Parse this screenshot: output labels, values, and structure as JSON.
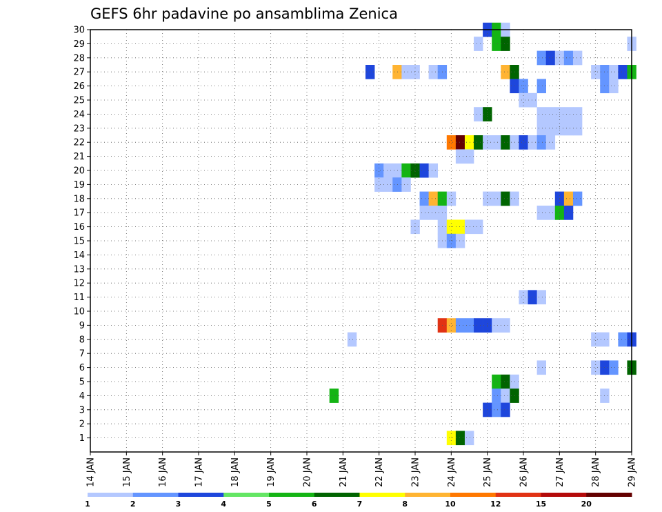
{
  "chart_data": {
    "type": "heatmap",
    "title": "GEFS 6hr padavine po ansamblima Zenica",
    "xlabel": "",
    "ylabel": "",
    "x_ticks": [
      "14 JAN",
      "15 JAN",
      "16 JAN",
      "17 JAN",
      "18 JAN",
      "19 JAN",
      "20 JAN",
      "21 JAN",
      "22 JAN",
      "23 JAN",
      "24 JAN",
      "25 JAN",
      "26 JAN",
      "27 JAN",
      "28 JAN",
      "29 JAN"
    ],
    "y_ticks": [
      "1",
      "2",
      "3",
      "4",
      "5",
      "6",
      "7",
      "8",
      "9",
      "10",
      "11",
      "12",
      "13",
      "14",
      "15",
      "16",
      "17",
      "18",
      "19",
      "20",
      "21",
      "22",
      "23",
      "24",
      "25",
      "26",
      "27",
      "28",
      "29",
      "30"
    ],
    "xlim_days": [
      14,
      29
    ],
    "ylim": [
      0,
      30
    ],
    "grid": true,
    "colorbar": {
      "levels": [
        "1",
        "2",
        "3",
        "4",
        "5",
        "6",
        "7",
        "8",
        "10",
        "12",
        "15",
        "20"
      ],
      "colors": [
        "#b4c8ff",
        "#6495ff",
        "#1e46dc",
        "#64e664",
        "#14b414",
        "#006400",
        "#ffff00",
        "#ffb432",
        "#ff7800",
        "#e13214",
        "#b40a0a",
        "#640000"
      ]
    },
    "cells": [
      {
        "y": 30,
        "x": "25 JAN 00Z",
        "v": 3
      },
      {
        "y": 30,
        "x": "25 JAN 06Z",
        "v": 5
      },
      {
        "y": 30,
        "x": "25 JAN 12Z",
        "v": 1
      },
      {
        "y": 29,
        "x": "24 JAN 18Z",
        "v": 1
      },
      {
        "y": 29,
        "x": "25 JAN 06Z",
        "v": 5
      },
      {
        "y": 29,
        "x": "25 JAN 12Z",
        "v": 6
      },
      {
        "y": 29,
        "x": "29 JAN 00Z",
        "v": 1
      },
      {
        "y": 28,
        "x": "26 JAN 12Z",
        "v": 2
      },
      {
        "y": 28,
        "x": "26 JAN 18Z",
        "v": 3
      },
      {
        "y": 28,
        "x": "27 JAN 00Z",
        "v": 1
      },
      {
        "y": 28,
        "x": "27 JAN 06Z",
        "v": 2
      },
      {
        "y": 28,
        "x": "27 JAN 12Z",
        "v": 1
      },
      {
        "y": 27,
        "x": "21 JAN 18Z",
        "v": 3
      },
      {
        "y": 27,
        "x": "22 JAN 12Z",
        "v": 8
      },
      {
        "y": 27,
        "x": "22 JAN 18Z",
        "v": 1
      },
      {
        "y": 27,
        "x": "23 JAN 00Z",
        "v": 1
      },
      {
        "y": 27,
        "x": "23 JAN 12Z",
        "v": 1
      },
      {
        "y": 27,
        "x": "23 JAN 18Z",
        "v": 2
      },
      {
        "y": 27,
        "x": "25 JAN 12Z",
        "v": 8
      },
      {
        "y": 27,
        "x": "25 JAN 18Z",
        "v": 6
      },
      {
        "y": 27,
        "x": "28 JAN 00Z",
        "v": 1
      },
      {
        "y": 27,
        "x": "28 JAN 06Z",
        "v": 2
      },
      {
        "y": 27,
        "x": "28 JAN 12Z",
        "v": 1
      },
      {
        "y": 27,
        "x": "28 JAN 18Z",
        "v": 3
      },
      {
        "y": 27,
        "x": "29 JAN 00Z",
        "v": 5
      },
      {
        "y": 26,
        "x": "25 JAN 18Z",
        "v": 3
      },
      {
        "y": 26,
        "x": "26 JAN 00Z",
        "v": 2
      },
      {
        "y": 26,
        "x": "26 JAN 12Z",
        "v": 2
      },
      {
        "y": 26,
        "x": "28 JAN 06Z",
        "v": 2
      },
      {
        "y": 26,
        "x": "28 JAN 12Z",
        "v": 1
      },
      {
        "y": 25,
        "x": "26 JAN 00Z",
        "v": 1
      },
      {
        "y": 25,
        "x": "26 JAN 06Z",
        "v": 1
      },
      {
        "y": 24,
        "x": "24 JAN 18Z",
        "v": 1
      },
      {
        "y": 24,
        "x": "25 JAN 00Z",
        "v": 6
      },
      {
        "y": 24,
        "x": "26 JAN 12Z",
        "v": 1
      },
      {
        "y": 24,
        "x": "26 JAN 18Z",
        "v": 1
      },
      {
        "y": 24,
        "x": "27 JAN 00Z",
        "v": 1
      },
      {
        "y": 24,
        "x": "27 JAN 06Z",
        "v": 1
      },
      {
        "y": 24,
        "x": "27 JAN 12Z",
        "v": 1
      },
      {
        "y": 23,
        "x": "26 JAN 12Z",
        "v": 1
      },
      {
        "y": 23,
        "x": "26 JAN 18Z",
        "v": 1
      },
      {
        "y": 23,
        "x": "27 JAN 00Z",
        "v": 1
      },
      {
        "y": 23,
        "x": "27 JAN 06Z",
        "v": 1
      },
      {
        "y": 23,
        "x": "27 JAN 12Z",
        "v": 1
      },
      {
        "y": 22,
        "x": "24 JAN 00Z",
        "v": 10
      },
      {
        "y": 22,
        "x": "24 JAN 06Z",
        "v": 20
      },
      {
        "y": 22,
        "x": "24 JAN 12Z",
        "v": 7
      },
      {
        "y": 22,
        "x": "24 JAN 18Z",
        "v": 6
      },
      {
        "y": 22,
        "x": "25 JAN 00Z",
        "v": 1
      },
      {
        "y": 22,
        "x": "25 JAN 06Z",
        "v": 1
      },
      {
        "y": 22,
        "x": "25 JAN 12Z",
        "v": 6
      },
      {
        "y": 22,
        "x": "25 JAN 18Z",
        "v": 1
      },
      {
        "y": 22,
        "x": "26 JAN 00Z",
        "v": 3
      },
      {
        "y": 22,
        "x": "26 JAN 06Z",
        "v": 1
      },
      {
        "y": 22,
        "x": "26 JAN 12Z",
        "v": 2
      },
      {
        "y": 22,
        "x": "26 JAN 18Z",
        "v": 1
      },
      {
        "y": 21,
        "x": "24 JAN 06Z",
        "v": 1
      },
      {
        "y": 21,
        "x": "24 JAN 12Z",
        "v": 1
      },
      {
        "y": 20,
        "x": "22 JAN 00Z",
        "v": 2
      },
      {
        "y": 20,
        "x": "22 JAN 06Z",
        "v": 1
      },
      {
        "y": 20,
        "x": "22 JAN 12Z",
        "v": 1
      },
      {
        "y": 20,
        "x": "22 JAN 18Z",
        "v": 5
      },
      {
        "y": 20,
        "x": "23 JAN 00Z",
        "v": 6
      },
      {
        "y": 20,
        "x": "23 JAN 06Z",
        "v": 3
      },
      {
        "y": 20,
        "x": "23 JAN 12Z",
        "v": 1
      },
      {
        "y": 19,
        "x": "22 JAN 00Z",
        "v": 1
      },
      {
        "y": 19,
        "x": "22 JAN 06Z",
        "v": 1
      },
      {
        "y": 19,
        "x": "22 JAN 12Z",
        "v": 2
      },
      {
        "y": 19,
        "x": "22 JAN 18Z",
        "v": 1
      },
      {
        "y": 18,
        "x": "23 JAN 06Z",
        "v": 2
      },
      {
        "y": 18,
        "x": "23 JAN 12Z",
        "v": 8
      },
      {
        "y": 18,
        "x": "23 JAN 18Z",
        "v": 5
      },
      {
        "y": 18,
        "x": "24 JAN 00Z",
        "v": 1
      },
      {
        "y": 18,
        "x": "25 JAN 00Z",
        "v": 1
      },
      {
        "y": 18,
        "x": "25 JAN 06Z",
        "v": 1
      },
      {
        "y": 18,
        "x": "25 JAN 12Z",
        "v": 6
      },
      {
        "y": 18,
        "x": "25 JAN 18Z",
        "v": 1
      },
      {
        "y": 18,
        "x": "27 JAN 00Z",
        "v": 3
      },
      {
        "y": 18,
        "x": "27 JAN 06Z",
        "v": 8
      },
      {
        "y": 18,
        "x": "27 JAN 12Z",
        "v": 2
      },
      {
        "y": 17,
        "x": "23 JAN 06Z",
        "v": 1
      },
      {
        "y": 17,
        "x": "23 JAN 12Z",
        "v": 1
      },
      {
        "y": 17,
        "x": "23 JAN 18Z",
        "v": 1
      },
      {
        "y": 17,
        "x": "26 JAN 12Z",
        "v": 1
      },
      {
        "y": 17,
        "x": "26 JAN 18Z",
        "v": 1
      },
      {
        "y": 17,
        "x": "27 JAN 00Z",
        "v": 5
      },
      {
        "y": 17,
        "x": "27 JAN 06Z",
        "v": 3
      },
      {
        "y": 16,
        "x": "23 JAN 00Z",
        "v": 1
      },
      {
        "y": 16,
        "x": "23 JAN 18Z",
        "v": 1
      },
      {
        "y": 16,
        "x": "24 JAN 00Z",
        "v": 7
      },
      {
        "y": 16,
        "x": "24 JAN 06Z",
        "v": 7
      },
      {
        "y": 16,
        "x": "24 JAN 12Z",
        "v": 1
      },
      {
        "y": 16,
        "x": "24 JAN 18Z",
        "v": 1
      },
      {
        "y": 15,
        "x": "23 JAN 18Z",
        "v": 1
      },
      {
        "y": 15,
        "x": "24 JAN 00Z",
        "v": 2
      },
      {
        "y": 15,
        "x": "24 JAN 06Z",
        "v": 1
      },
      {
        "y": 11,
        "x": "26 JAN 00Z",
        "v": 1
      },
      {
        "y": 11,
        "x": "26 JAN 06Z",
        "v": 3
      },
      {
        "y": 11,
        "x": "26 JAN 12Z",
        "v": 1
      },
      {
        "y": 9,
        "x": "23 JAN 18Z",
        "v": 12
      },
      {
        "y": 9,
        "x": "24 JAN 00Z",
        "v": 8
      },
      {
        "y": 9,
        "x": "24 JAN 06Z",
        "v": 2
      },
      {
        "y": 9,
        "x": "24 JAN 12Z",
        "v": 2
      },
      {
        "y": 9,
        "x": "24 JAN 18Z",
        "v": 3
      },
      {
        "y": 9,
        "x": "25 JAN 00Z",
        "v": 3
      },
      {
        "y": 9,
        "x": "25 JAN 06Z",
        "v": 1
      },
      {
        "y": 9,
        "x": "25 JAN 12Z",
        "v": 1
      },
      {
        "y": 8,
        "x": "21 JAN 06Z",
        "v": 1
      },
      {
        "y": 8,
        "x": "28 JAN 00Z",
        "v": 1
      },
      {
        "y": 8,
        "x": "28 JAN 06Z",
        "v": 1
      },
      {
        "y": 8,
        "x": "28 JAN 18Z",
        "v": 2
      },
      {
        "y": 8,
        "x": "29 JAN 00Z",
        "v": 3
      },
      {
        "y": 6,
        "x": "26 JAN 12Z",
        "v": 1
      },
      {
        "y": 6,
        "x": "28 JAN 00Z",
        "v": 1
      },
      {
        "y": 6,
        "x": "28 JAN 06Z",
        "v": 3
      },
      {
        "y": 6,
        "x": "28 JAN 12Z",
        "v": 2
      },
      {
        "y": 6,
        "x": "29 JAN 00Z",
        "v": 6
      },
      {
        "y": 5,
        "x": "25 JAN 06Z",
        "v": 5
      },
      {
        "y": 5,
        "x": "25 JAN 12Z",
        "v": 6
      },
      {
        "y": 5,
        "x": "25 JAN 18Z",
        "v": 1
      },
      {
        "y": 4,
        "x": "20 JAN 18Z",
        "v": 5
      },
      {
        "y": 4,
        "x": "25 JAN 06Z",
        "v": 2
      },
      {
        "y": 4,
        "x": "25 JAN 12Z",
        "v": 1
      },
      {
        "y": 4,
        "x": "25 JAN 18Z",
        "v": 6
      },
      {
        "y": 4,
        "x": "28 JAN 06Z",
        "v": 1
      },
      {
        "y": 3,
        "x": "25 JAN 00Z",
        "v": 3
      },
      {
        "y": 3,
        "x": "25 JAN 06Z",
        "v": 2
      },
      {
        "y": 3,
        "x": "25 JAN 12Z",
        "v": 3
      },
      {
        "y": 1,
        "x": "24 JAN 00Z",
        "v": 7
      },
      {
        "y": 1,
        "x": "24 JAN 06Z",
        "v": 6
      },
      {
        "y": 1,
        "x": "24 JAN 12Z",
        "v": 1
      }
    ]
  }
}
